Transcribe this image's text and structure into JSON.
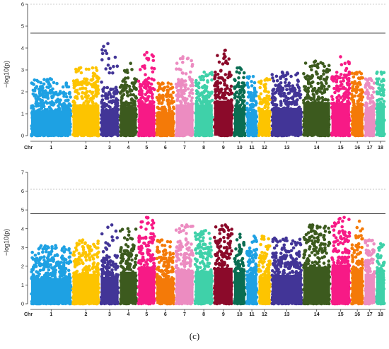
{
  "caption": "(c)",
  "chr_axis_label": "Chr",
  "chromosome_colors": [
    "#1ea1e3",
    "#fdc400",
    "#423597",
    "#3c5a1e",
    "#f71a86",
    "#f47a08",
    "#ec8cc1",
    "#3fd1a9",
    "#8b0a2a",
    "#0a6d52",
    "#1ea1e3",
    "#fdc400",
    "#423597",
    "#3c5a1e",
    "#f71a86",
    "#f47a08",
    "#ec8cc1",
    "#3fd1a9"
  ],
  "chart_data": [
    {
      "type": "scatter",
      "subtype": "manhattan",
      "title": "",
      "xlabel": "Chr",
      "ylabel": "−log10(p)",
      "ylim": [
        0,
        6
      ],
      "yticks": [
        0,
        1,
        2,
        3,
        4,
        5,
        6
      ],
      "significance_line": 4.68,
      "suggestive_line": 6.0,
      "grid": false,
      "categories": [
        "1",
        "2",
        "3",
        "4",
        "5",
        "6",
        "7",
        "8",
        "9",
        "10",
        "11",
        "12",
        "13",
        "14",
        "15",
        "16",
        "17",
        "18"
      ],
      "chr_widths": [
        0.125,
        0.085,
        0.058,
        0.055,
        0.055,
        0.058,
        0.058,
        0.058,
        0.06,
        0.038,
        0.036,
        0.04,
        0.095,
        0.085,
        0.06,
        0.04,
        0.035,
        0.03
      ],
      "max_neglog10p": [
        2.6,
        3.1,
        4.2,
        3.3,
        3.8,
        2.4,
        3.6,
        2.9,
        3.9,
        3.1,
        2.7,
        2.6,
        2.9,
        3.4,
        3.6,
        2.9,
        2.6,
        2.9
      ],
      "typical_height": [
        2.1,
        2.6,
        2.2,
        2.4,
        2.6,
        1.9,
        2.6,
        2.6,
        2.9,
        2.3,
        2.0,
        2.1,
        2.3,
        2.8,
        2.7,
        2.4,
        2.2,
        2.7
      ]
    },
    {
      "type": "scatter",
      "subtype": "manhattan",
      "title": "",
      "xlabel": "Chr",
      "ylabel": "−log10(p)",
      "ylim": [
        0,
        7
      ],
      "yticks": [
        0,
        1,
        2,
        3,
        4,
        5,
        6,
        7
      ],
      "significance_line": 4.8,
      "suggestive_line": 6.1,
      "grid": false,
      "categories": [
        "1",
        "2",
        "3",
        "4",
        "5",
        "6",
        "7",
        "8",
        "9",
        "10",
        "11",
        "12",
        "13",
        "14",
        "15",
        "16",
        "17",
        "18"
      ],
      "chr_widths": [
        0.125,
        0.085,
        0.058,
        0.055,
        0.055,
        0.058,
        0.058,
        0.058,
        0.06,
        0.038,
        0.036,
        0.04,
        0.095,
        0.085,
        0.06,
        0.04,
        0.035,
        0.03
      ],
      "max_neglog10p": [
        3.1,
        3.4,
        4.2,
        4.0,
        4.6,
        3.4,
        4.2,
        3.9,
        4.2,
        3.7,
        3.6,
        3.6,
        3.5,
        4.2,
        4.6,
        4.4,
        3.4,
        3.2
      ],
      "typical_height": [
        2.5,
        2.9,
        2.6,
        3.1,
        3.6,
        2.5,
        3.3,
        3.2,
        3.5,
        3.0,
        2.8,
        2.6,
        2.8,
        3.6,
        3.8,
        3.3,
        2.9,
        2.9
      ]
    }
  ]
}
